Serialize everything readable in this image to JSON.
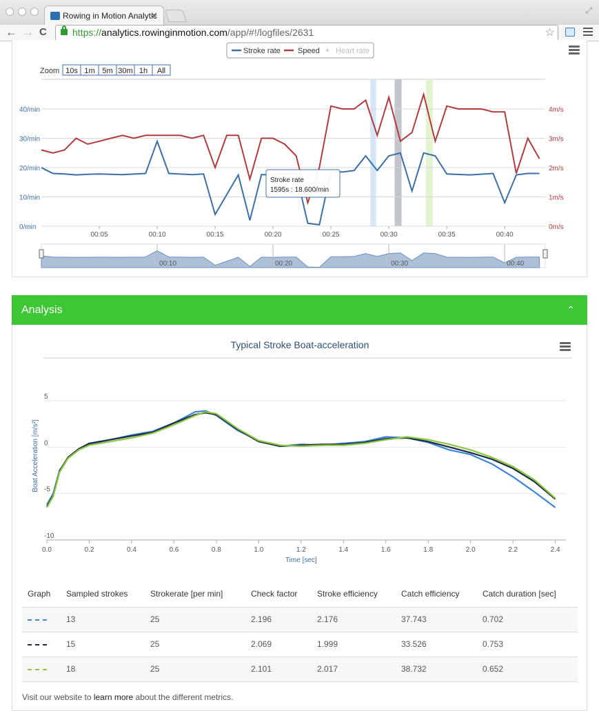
{
  "browser": {
    "tab_title": "Rowing in Motion Analytic",
    "tab_close": "✕",
    "url_scheme": "https://",
    "url_host": "analytics.rowinginmotion.com",
    "url_path": "/app/#!/logfiles/2631",
    "back": "←",
    "forward": "→",
    "reload": "C",
    "star": "☆"
  },
  "chart1": {
    "legend": [
      "Stroke rate",
      "Speed",
      "Heart rate"
    ],
    "zoom_label": "Zoom",
    "zoom_buttons": [
      "10s",
      "1m",
      "5m",
      "30m",
      "1h",
      "All"
    ],
    "left_axis_labels": [
      "40/min",
      "30/min",
      "20/min",
      "10/min",
      "0/min"
    ],
    "right_axis_labels": [
      "4m/s",
      "3m/s",
      "2m/s",
      "1m/s",
      "0m/s"
    ],
    "x_labels": [
      "00:05",
      "00:10",
      "00:15",
      "00:20",
      "00:25",
      "00:30",
      "00:35",
      "00:40"
    ],
    "navigator_labels": [
      "00:10",
      "00:20",
      "00:30",
      "00:40"
    ],
    "tooltip_title": "Stroke rate",
    "tooltip_value": "1595s : 18.600/min",
    "colors": {
      "stroke_rate": "#3a6ea8",
      "speed": "#b23a3a",
      "heart_rate": "#cccccc"
    }
  },
  "analysis": {
    "header": "Analysis",
    "chevron": "⌃",
    "chart_title": "Typical Stroke Boat-acceleration",
    "y_axis_title": "Boat Acceleration [m/s²]",
    "x_axis_title": "Time [sec]",
    "y_ticks": [
      "5",
      "0",
      "-5",
      "-10"
    ],
    "x_ticks": [
      "0.0",
      "0.2",
      "0.4",
      "0.6",
      "0.8",
      "1.0",
      "1.2",
      "1.4",
      "1.6",
      "1.8",
      "2.0",
      "2.2",
      "2.4"
    ],
    "table": {
      "headers": [
        "Graph",
        "Sampled strokes",
        "Strokerate [per min]",
        "Check factor",
        "Stroke efficiency",
        "Catch efficiency",
        "Catch duration [sec]"
      ],
      "rows": [
        {
          "color": "#3b83d6",
          "sampled": "13",
          "rate": "25",
          "check": "2.196",
          "stroke_eff": "2.176",
          "catch_eff": "37.743",
          "catch_dur": "0.702"
        },
        {
          "color": "#1a2a45",
          "sampled": "15",
          "rate": "25",
          "check": "2.069",
          "stroke_eff": "1.999",
          "catch_eff": "33.526",
          "catch_dur": "0.753"
        },
        {
          "color": "#8cc63e",
          "sampled": "18",
          "rate": "25",
          "check": "2.101",
          "stroke_eff": "2.017",
          "catch_eff": "38.732",
          "catch_dur": "0.652"
        }
      ]
    },
    "footer_pre": "Visit our website to ",
    "footer_link": "learn more",
    "footer_post": " about the different metrics."
  },
  "chart_data": [
    {
      "type": "line",
      "series": [
        {
          "name": "Stroke rate",
          "x": [
            0,
            0.5,
            1,
            2,
            3,
            4,
            5,
            7,
            9,
            10,
            11,
            13,
            14,
            15,
            17,
            18,
            19,
            20,
            21,
            22,
            23,
            24,
            25,
            26,
            27,
            28,
            29,
            30,
            31,
            32,
            33,
            34,
            35,
            37,
            39,
            40,
            41,
            42,
            43
          ],
          "values": [
            20,
            19,
            18,
            17.8,
            17.5,
            17.7,
            17.8,
            17.6,
            18,
            29,
            18,
            17.6,
            17.8,
            4,
            17.5,
            2,
            17.6,
            17.5,
            18,
            18,
            1,
            0.5,
            18.6,
            18.5,
            19,
            24,
            19,
            24,
            25,
            12,
            25,
            24,
            17.8,
            17.5,
            18,
            8,
            17.5,
            18,
            18
          ]
        },
        {
          "name": "Speed",
          "x": [
            0,
            1,
            2,
            3,
            4,
            5,
            6,
            7,
            8,
            9,
            10,
            11,
            12,
            13,
            14,
            15,
            16,
            17,
            18,
            19,
            20,
            21,
            22,
            23,
            24,
            25,
            26,
            27,
            28,
            29,
            30,
            31,
            32,
            33,
            34,
            35,
            36,
            37,
            38,
            39,
            40,
            41,
            42,
            43
          ],
          "values": [
            2.6,
            2.5,
            2.6,
            3.0,
            2.8,
            2.9,
            3.0,
            3.1,
            3.0,
            3.1,
            3.1,
            3.1,
            3.1,
            3.0,
            3.1,
            2.0,
            3.1,
            3.1,
            1.6,
            3.0,
            3.0,
            2.8,
            2.4,
            0.8,
            2.0,
            4.1,
            4.0,
            4.0,
            4.3,
            3.1,
            4.4,
            2.9,
            3.2,
            4.5,
            2.9,
            4.1,
            4.0,
            4.0,
            4.0,
            3.9,
            3.9,
            1.8,
            3.0,
            2.3
          ]
        },
        {
          "name": "Heart rate",
          "x": [],
          "values": []
        }
      ],
      "xlabel": "",
      "ylabel": "",
      "xlim": [
        0,
        43.5
      ],
      "ylim_left": [
        0,
        40
      ],
      "ylim_right": [
        0,
        4
      ],
      "x_unit": "minutes"
    },
    {
      "type": "line",
      "title": "Typical Stroke Boat-acceleration",
      "xlabel": "Time [sec]",
      "ylabel": "Boat Acceleration [m/s²]",
      "xlim": [
        0,
        2.45
      ],
      "ylim": [
        -10,
        5
      ],
      "series": [
        {
          "x": [
            0,
            0.03,
            0.06,
            0.1,
            0.15,
            0.2,
            0.3,
            0.4,
            0.5,
            0.6,
            0.7,
            0.75,
            0.8,
            0.9,
            1.0,
            1.1,
            1.2,
            1.3,
            1.4,
            1.5,
            1.6,
            1.7,
            1.8,
            1.9,
            2.0,
            2.1,
            2.2,
            2.3,
            2.4
          ],
          "values": [
            -6.2,
            -5.0,
            -2.5,
            -1.2,
            -0.3,
            0.3,
            0.8,
            1.3,
            1.7,
            2.6,
            3.8,
            3.9,
            3.4,
            1.8,
            0.7,
            0.1,
            0.3,
            0.2,
            0.4,
            0.6,
            1.1,
            1.0,
            0.5,
            -0.3,
            -0.8,
            -1.8,
            -3.2,
            -4.8,
            -6.5
          ]
        },
        {
          "x": [
            0,
            0.03,
            0.06,
            0.1,
            0.15,
            0.2,
            0.3,
            0.4,
            0.5,
            0.6,
            0.7,
            0.75,
            0.8,
            0.9,
            1.0,
            1.1,
            1.2,
            1.3,
            1.4,
            1.5,
            1.6,
            1.7,
            1.8,
            1.9,
            2.0,
            2.1,
            2.2,
            2.3,
            2.4
          ],
          "values": [
            -6.4,
            -5.2,
            -2.6,
            -1.1,
            -0.2,
            0.4,
            0.8,
            1.2,
            1.6,
            2.6,
            3.5,
            3.7,
            3.5,
            1.9,
            0.6,
            0.1,
            0.2,
            0.3,
            0.3,
            0.5,
            0.9,
            1.0,
            0.6,
            0.0,
            -0.6,
            -1.3,
            -2.3,
            -3.7,
            -5.6
          ]
        },
        {
          "x": [
            0,
            0.03,
            0.06,
            0.1,
            0.15,
            0.2,
            0.3,
            0.4,
            0.5,
            0.6,
            0.7,
            0.75,
            0.8,
            0.9,
            1.0,
            1.1,
            1.2,
            1.3,
            1.4,
            1.5,
            1.6,
            1.7,
            1.8,
            1.9,
            2.0,
            2.1,
            2.2,
            2.3,
            2.4
          ],
          "values": [
            -6.5,
            -5.3,
            -2.7,
            -1.2,
            -0.3,
            0.2,
            0.6,
            1.0,
            1.5,
            2.4,
            3.4,
            3.8,
            3.6,
            2.0,
            0.7,
            0.2,
            0.1,
            0.2,
            0.2,
            0.4,
            0.8,
            1.1,
            0.8,
            0.3,
            -0.3,
            -1.1,
            -2.1,
            -3.5,
            -5.5
          ]
        }
      ]
    }
  ]
}
